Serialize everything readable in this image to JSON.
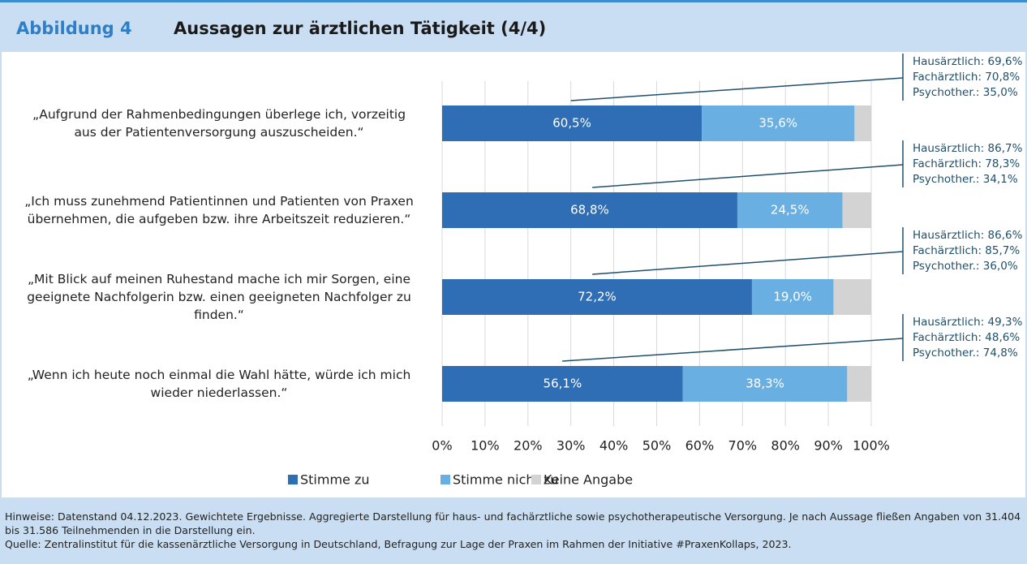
{
  "figure_label": "Abbildung 4",
  "chart_data": {
    "type": "stacked_bar_horizontal",
    "title": "Aussagen zur ärztlichen Tätigkeit (4/4)",
    "categories": [
      "„Aufgrund der Rahmenbedingungen überlege ich, vorzeitig\naus der Patientenversorgung auszuscheiden.“",
      "„Ich muss zunehmend Patientinnen und Patienten von Praxen\nübernehmen, die aufgeben bzw. ihre Arbeitszeit reduzieren.“",
      "„Mit Blick auf meinen Ruhestand mache ich mir Sorgen, eine\ngeeignete Nachfolgerin bzw. einen geeigneten Nachfolger zu\nfinden.“",
      "„Wenn ich heute noch einmal die Wahl hätte, würde ich mich\nwieder niederlassen.“"
    ],
    "series": [
      {
        "name": "Stimme zu",
        "color": "#2f6db5",
        "values": [
          60.5,
          68.8,
          72.2,
          56.1
        ],
        "value_labels": [
          "60,5%",
          "68,8%",
          "72,2%",
          "56,1%"
        ]
      },
      {
        "name": "Stimme nicht zu",
        "color": "#6aafe2",
        "values": [
          35.6,
          24.5,
          19.0,
          38.3
        ],
        "value_labels": [
          "35,6%",
          "24,5%",
          "19,0%",
          "38,3%"
        ]
      },
      {
        "name": "Keine Angabe",
        "color": "#d3d3d3",
        "values": [
          3.9,
          6.7,
          8.8,
          5.6
        ]
      }
    ],
    "xlim": [
      0,
      100
    ],
    "xticks": [
      {
        "value": 0,
        "label": "0%"
      },
      {
        "value": 10,
        "label": "10%"
      },
      {
        "value": 20,
        "label": "20%"
      },
      {
        "value": 30,
        "label": "30%"
      },
      {
        "value": 40,
        "label": "40%"
      },
      {
        "value": 50,
        "label": "50%"
      },
      {
        "value": 60,
        "label": "60%"
      },
      {
        "value": 70,
        "label": "70%"
      },
      {
        "value": 80,
        "label": "80%"
      },
      {
        "value": 90,
        "label": "90%"
      },
      {
        "value": 100,
        "label": "100%"
      }
    ],
    "grid": true,
    "annotations": [
      [
        "Hausärztlich: 69,6%",
        "Fachärztlich: 70,8%",
        "Psychother.: 35,0%"
      ],
      [
        "Hausärztlich: 86,7%",
        "Fachärztlich: 78,3%",
        "Psychother.: 34,1%"
      ],
      [
        "Hausärztlich: 86,6%",
        "Fachärztlich: 85,7%",
        "Psychother.: 36,0%"
      ],
      [
        "Hausärztlich: 49,3%",
        "Fachärztlich: 48,6%",
        "Psychother.: 74,8%"
      ]
    ]
  },
  "footer": {
    "notes": "Hinweise: Datenstand 04.12.2023. Gewichtete Ergebnisse. Aggregierte Darstellung für haus- und fachärztliche sowie psychotherapeutische Versorgung. Je nach Aussage fließen Angaben von 31.404 bis 31.586 Teilnehmenden in die Darstellung ein.",
    "source": "Quelle: Zentralinstitut für die kassenärztliche Versorgung in Deutschland, Befragung zur Lage der Praxen im Rahmen der Initiative #PraxenKollaps, 2023."
  }
}
